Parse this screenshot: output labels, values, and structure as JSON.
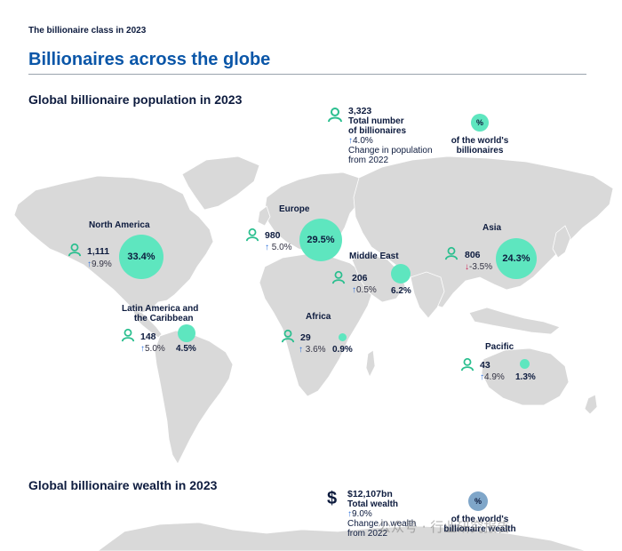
{
  "header": {
    "kicker": "The billionaire class in 2023",
    "title": "Billionaires across the globe"
  },
  "population": {
    "title": "Global billionaire population in 2023",
    "legend": {
      "total_value": "3,323",
      "total_label_1": "Total number",
      "total_label_2": "of billionaires",
      "change_value": "4.0%",
      "change_label_1": "Change in population",
      "change_label_2": "from 2022",
      "pct_symbol": "%",
      "pct_label_1": "of the world's",
      "pct_label_2": "billionaires"
    },
    "regions": {
      "north_america": {
        "name": "North America",
        "count": "1,111",
        "change": "9.9%",
        "direction": "up",
        "share": "33.4%",
        "share_value": 33.4
      },
      "europe": {
        "name": "Europe",
        "count": "980",
        "change": "5.0%",
        "direction": "up",
        "share": "29.5%",
        "share_value": 29.5
      },
      "middle_east": {
        "name": "Middle East",
        "count": "206",
        "change": "0.5%",
        "direction": "up",
        "share": "6.2%",
        "share_value": 6.2
      },
      "asia": {
        "name": "Asia",
        "count": "806",
        "change": "-3.5%",
        "direction": "down",
        "share": "24.3%",
        "share_value": 24.3
      },
      "latam": {
        "name_1": "Latin America and",
        "name_2": "the Caribbean",
        "count": "148",
        "change": "5.0%",
        "direction": "up",
        "share": "4.5%",
        "share_value": 4.5
      },
      "africa": {
        "name": "Africa",
        "count": "29",
        "change": "3.6%",
        "direction": "up",
        "share": "0.9%",
        "share_value": 0.9
      },
      "pacific": {
        "name": "Pacific",
        "count": "43",
        "change": "4.9%",
        "direction": "up",
        "share": "1.3%",
        "share_value": 1.3
      }
    }
  },
  "wealth": {
    "title": "Global billionaire wealth in 2023",
    "legend": {
      "total_value": "$12,107bn",
      "total_label": "Total wealth",
      "change_value": "9.0%",
      "change_label_1": "Change in wealth",
      "change_label_2": "from 2022",
      "pct_symbol": "%",
      "pct_label_1": "of the world's",
      "pct_label_2": "billionaire wealth"
    }
  },
  "watermark": "公众号 · 行业研究报告",
  "colors": {
    "navy": "#0d1b3e",
    "accent_blue": "#0a56a8",
    "bubble_green": "#5ee6bf",
    "map_gray": "#d9d9d9",
    "up_arrow": "#2a6fdb",
    "down_arrow": "#d01a4e"
  },
  "icons": {
    "person": "person-icon",
    "dollar": "dollar-icon"
  }
}
